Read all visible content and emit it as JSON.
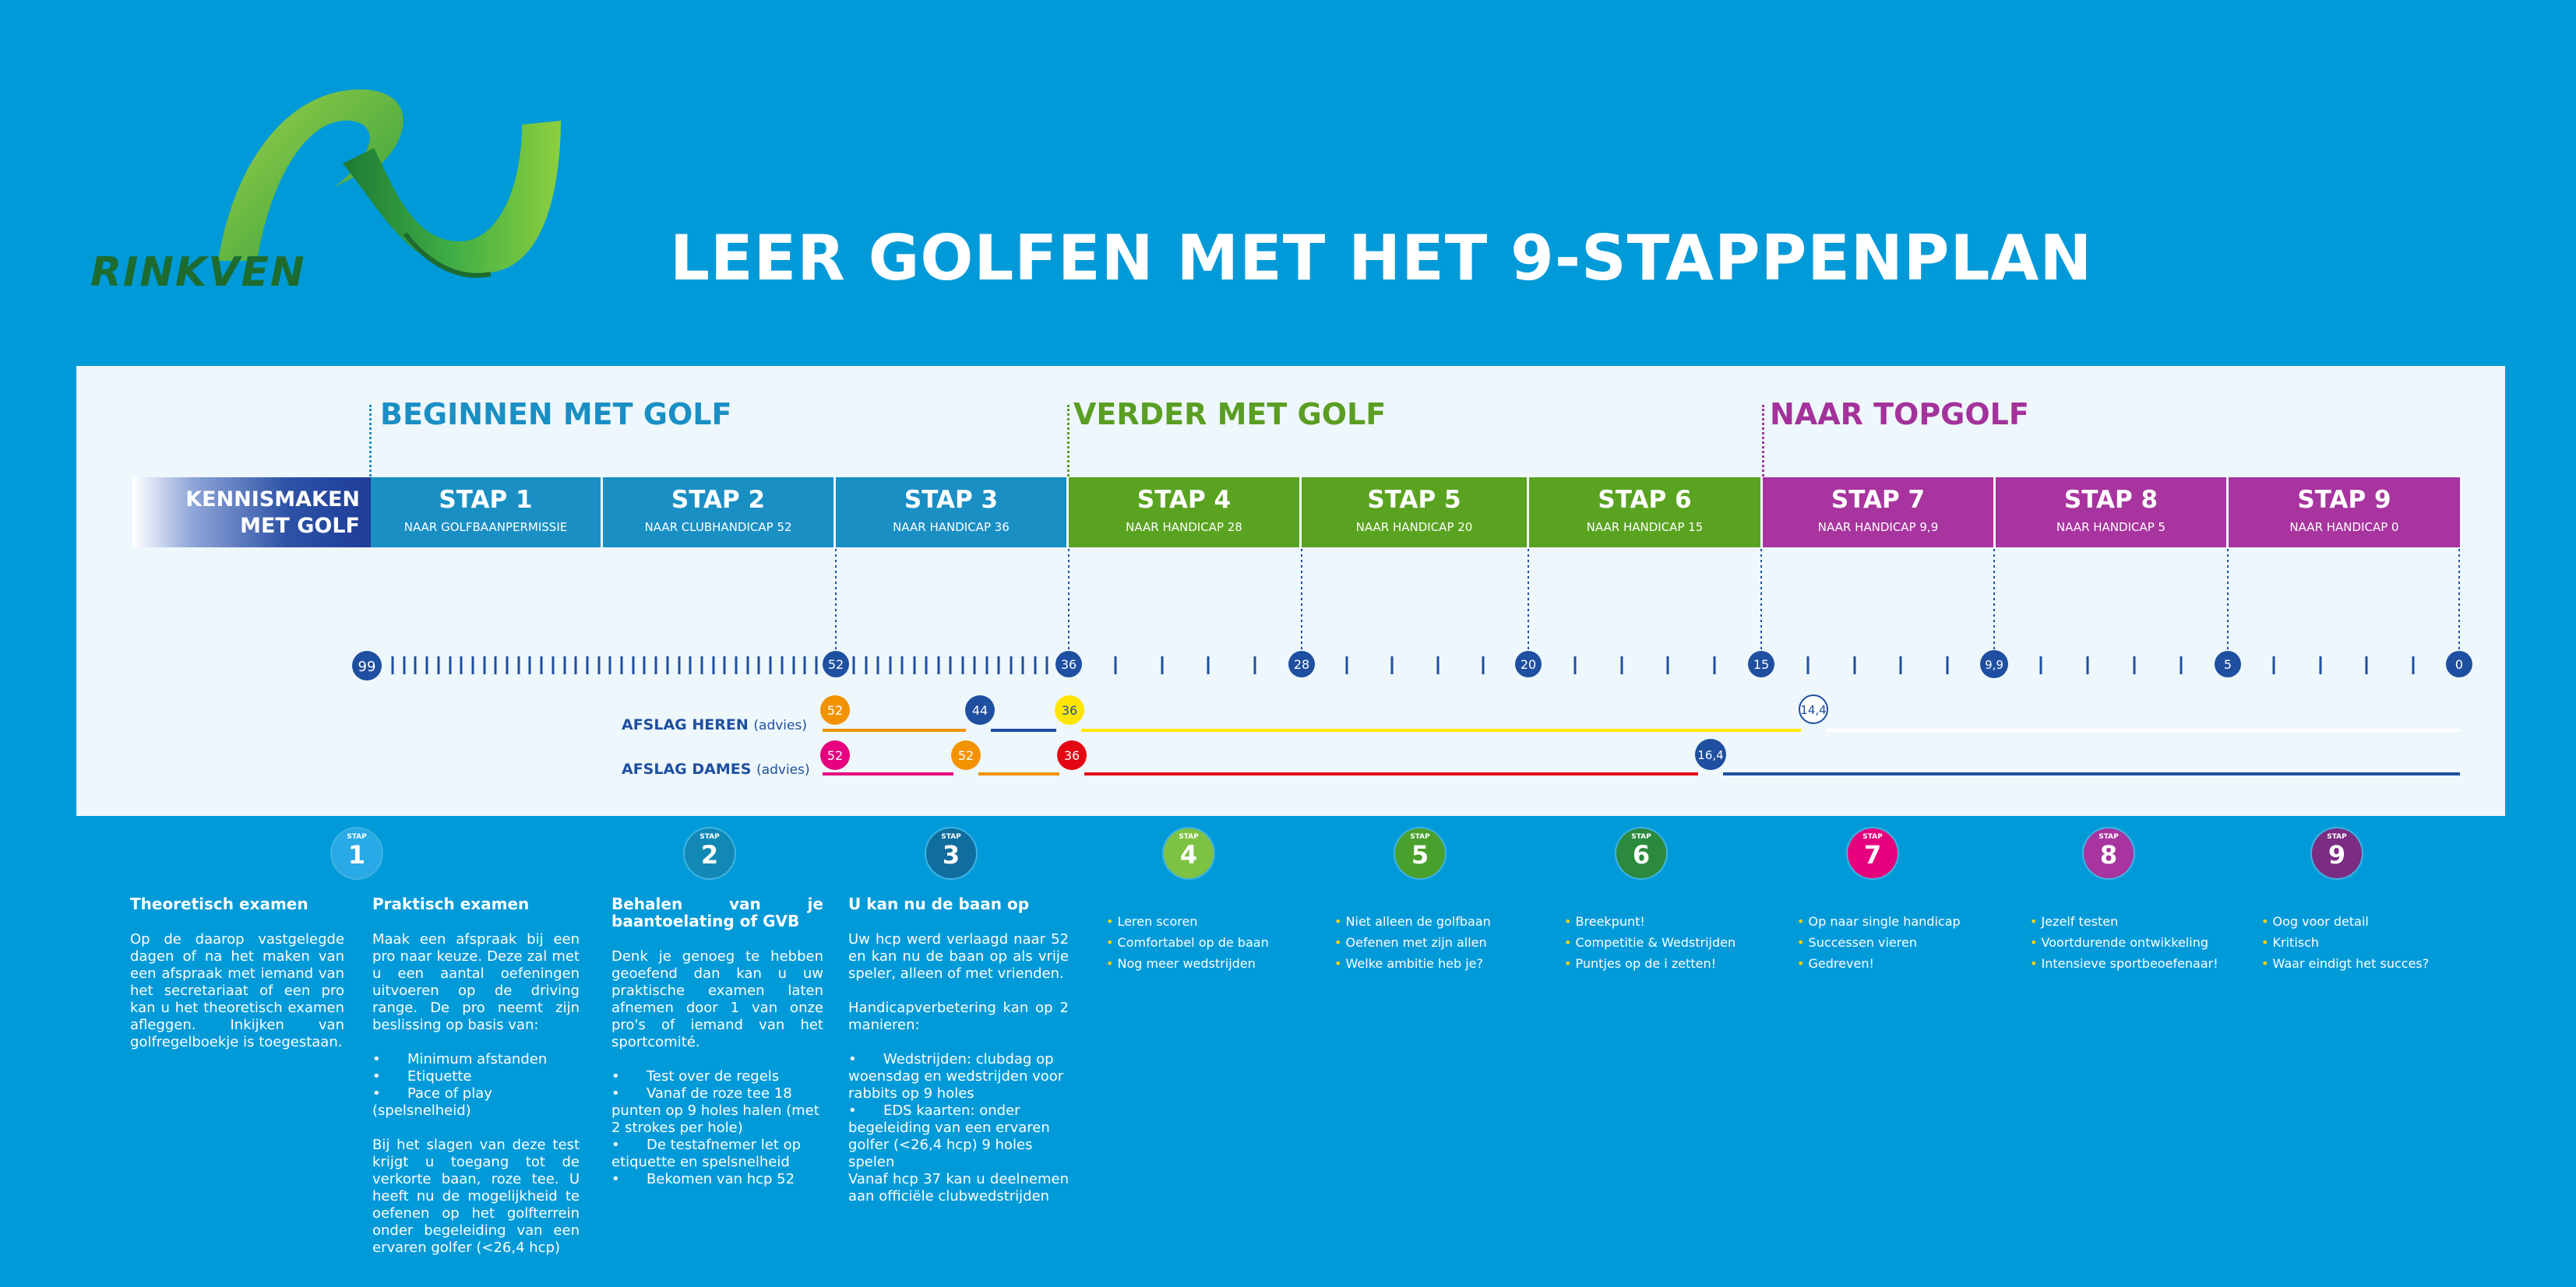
{
  "logo": {
    "name": "RINKVEN"
  },
  "title": "LEER GOLFEN MET HET 9-STAPPENPLAN",
  "phases": [
    {
      "label": "BEGINNEN MET GOLF",
      "color": "#1a8fc4"
    },
    {
      "label": "VERDER MET GOLF",
      "color": "#5a9e23"
    },
    {
      "label": "NAAR TOPGOLF",
      "color": "#a3339b"
    }
  ],
  "kennismaken": {
    "line1": "KENNISMAKEN",
    "line2": "MET GOLF"
  },
  "steps": [
    {
      "title": "STAP 1",
      "sub": "NAAR GOLFBAANPERMISSIE",
      "color": "#1a8fc4"
    },
    {
      "title": "STAP 2",
      "sub": "NAAR CLUBHANDICAP 52",
      "color": "#1a8fc4"
    },
    {
      "title": "STAP 3",
      "sub": "NAAR HANDICAP 36",
      "color": "#1a8fc4"
    },
    {
      "title": "STAP 4",
      "sub": "NAAR HANDICAP 28",
      "color": "#5aa321"
    },
    {
      "title": "STAP 5",
      "sub": "NAAR HANDICAP 20",
      "color": "#5aa321"
    },
    {
      "title": "STAP 6",
      "sub": "NAAR HANDICAP 15",
      "color": "#5aa321"
    },
    {
      "title": "STAP 7",
      "sub": "NAAR HANDICAP 9,9",
      "color": "#a8349f"
    },
    {
      "title": "STAP 8",
      "sub": "NAAR HANDICAP 5",
      "color": "#a8349f"
    },
    {
      "title": "STAP 9",
      "sub": "NAAR HANDICAP 0",
      "color": "#a8349f"
    }
  ],
  "handicap_markers": [
    "99",
    "52",
    "36",
    "28",
    "20",
    "15",
    "9,9",
    "5",
    "0"
  ],
  "afslag": {
    "heren_label": "AFSLAG HEREN",
    "heren_suffix": "(advies)",
    "dames_label": "AFSLAG DAMES",
    "dames_suffix": "(advies)",
    "heren_markers": [
      "52",
      "44",
      "36",
      "14,4"
    ],
    "dames_markers": [
      "52",
      "52",
      "36",
      "16,4"
    ]
  },
  "colors": {
    "blue": "#1e4fa0",
    "orange": "#f39200",
    "yellow": "#ffe500",
    "magenta": "#e6007e",
    "red": "#e30613",
    "dark_blue": "#1e4fa0"
  },
  "badges": [
    {
      "small": "STAP",
      "num": "1",
      "color": "#29a9e6"
    },
    {
      "small": "STAP",
      "num": "2",
      "color": "#1289b5"
    },
    {
      "small": "STAP",
      "num": "3",
      "color": "#0f6e9f"
    },
    {
      "small": "STAP",
      "num": "4",
      "color": "#7dc242"
    },
    {
      "small": "STAP",
      "num": "5",
      "color": "#4aa02c"
    },
    {
      "small": "STAP",
      "num": "6",
      "color": "#2b8a3e"
    },
    {
      "small": "STAP",
      "num": "7",
      "color": "#e6007e"
    },
    {
      "small": "STAP",
      "num": "8",
      "color": "#a8349f"
    },
    {
      "small": "STAP",
      "num": "9",
      "color": "#7b2c83"
    }
  ],
  "col1": {
    "heading": "Theoretisch examen",
    "text": "Op de daarop vastgelegde dagen of na het maken van een afspraak met iemand van het secretariaat of een pro kan u het theoretisch examen afleggen. Inkijken van golfregelboekje is toegestaan."
  },
  "col2": {
    "heading": "Praktisch examen",
    "intro": "Maak een afspraak bij een pro naar keuze. Deze zal met u een aantal oefeningen uitvoeren op de driving range. De pro neemt zijn beslissing op basis van:",
    "items": [
      "Minimum afstanden",
      "Etiquette",
      "Pace of play (spelsnelheid)"
    ],
    "outro": "Bij het slagen van deze test krijgt u toegang tot de verkorte baan, roze tee. U heeft nu de mogelijkheid te oefenen op het golfterrein onder begeleiding van een ervaren golfer (<26,4 hcp)"
  },
  "col3": {
    "heading": "Behalen van je baantoelating of GVB",
    "intro": "Denk je genoeg te hebben geoefend dan kan u uw praktische examen laten afnemen door 1 van onze pro's of iemand van het sportcomité.",
    "items": [
      "Test over de regels",
      "Vanaf de roze tee 18 punten op 9 holes halen (met 2 strokes per hole)",
      "De testafnemer let op etiquette en spelsnelheid",
      "Bekomen van hcp 52"
    ]
  },
  "col4": {
    "heading": "U kan nu de baan op",
    "p1": "Uw hcp werd verlaagd naar 52 en kan nu de baan op als vrije speler, alleen of met vrienden.",
    "p2": "Handicapverbetering kan op 2 manieren:",
    "items": [
      "Wedstrijden: clubdag op woensdag en wedstrijden voor rabbits op 9 holes",
      "EDS kaarten: onder begeleiding van een ervaren golfer (<26,4 hcp) 9 holes spelen"
    ],
    "p3": "Vanaf hcp 37 kan u deelnemen aan officiële clubwedstrijden"
  },
  "bullets": [
    [
      "Leren scoren",
      "Comfortabel op de baan",
      "Nog meer wedstrijden"
    ],
    [
      "Niet alleen de golfbaan",
      "Oefenen met zijn allen",
      "Welke ambitie heb je?"
    ],
    [
      "Breekpunt!",
      "Competitie & Wedstrijden",
      "Puntjes op de i zetten!"
    ],
    [
      "Op naar single handicap",
      "Successen vieren",
      "Gedreven!"
    ],
    [
      "Jezelf testen",
      "Voortdurende ontwikkeling",
      "Intensieve sportbeoefenaar!"
    ],
    [
      "Oog voor detail",
      "Kritisch",
      "Waar eindigt het succes?"
    ]
  ]
}
